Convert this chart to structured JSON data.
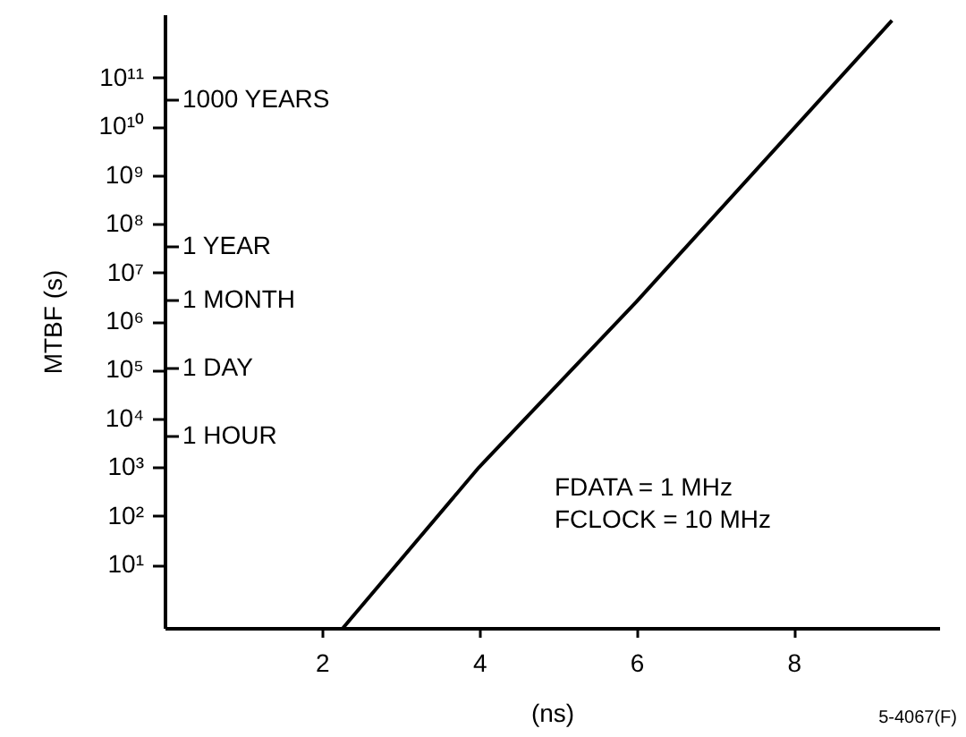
{
  "chart_data": {
    "type": "line",
    "xlabel": "(ns)",
    "ylabel": "MTBF (s)",
    "log": "y",
    "series": [
      {
        "color": "#000000",
        "x": [
          2.27,
          4,
          6,
          9.25
        ],
        "values": [
          0.5,
          1000,
          2500000,
          1500000000000
        ]
      }
    ],
    "xlim": [
      0,
      9.85
    ],
    "xticks": [
      2,
      4,
      6,
      8
    ],
    "ylim": [
      0.5,
      2000000000000
    ],
    "yticks": [
      {
        "value": 10,
        "label": "10¹"
      },
      {
        "value": 100,
        "label": "10²"
      },
      {
        "value": 1000,
        "label": "10³"
      },
      {
        "value": 10000,
        "label": "10⁴"
      },
      {
        "value": 100000,
        "label": "10⁵"
      },
      {
        "value": 1000000,
        "label": "10⁶"
      },
      {
        "value": 10000000,
        "label": "10⁷"
      },
      {
        "value": 100000000,
        "label": "10⁸"
      },
      {
        "value": 1000000000,
        "label": "10⁹"
      },
      {
        "value": 10000000000,
        "label": "10¹⁰"
      },
      {
        "value": 100000000000,
        "label": "10¹¹"
      }
    ],
    "grid": false,
    "marker": "none",
    "line_style": "solid",
    "annotations": [
      "1000 YEARS",
      "1 YEAR",
      "1 MONTH",
      "1 DAY",
      "1 HOUR",
      "FDATA = 1 MHz",
      "FCLOCK = 10 MHz",
      "5-4067(F)"
    ]
  }
}
